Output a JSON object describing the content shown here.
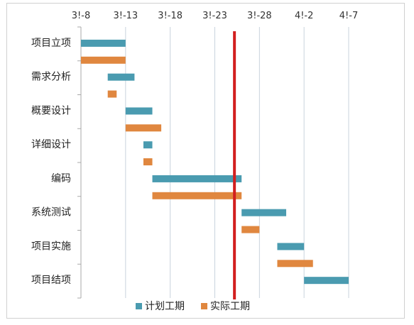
{
  "chart_data": {
    "type": "bar",
    "subtype": "gantt",
    "x_axis": {
      "position": "top",
      "tick_labels": [
        "3!-8",
        "3!-13",
        "3!-18",
        "3!-23",
        "3!-28",
        "4!-2",
        "4!-7"
      ],
      "tick_days": [
        0,
        5,
        10,
        15,
        20,
        25,
        30
      ],
      "range_days": [
        0,
        30
      ],
      "start_date": "3-8",
      "gridlines": true
    },
    "categories": [
      "项目立项",
      "需求分析",
      "概要设计",
      "详细设计",
      "编码",
      "系统测试",
      "项目实施",
      "项目结项"
    ],
    "series": [
      {
        "name": "计划工期",
        "color": "#4a9bb0",
        "bars": [
          {
            "start": 0,
            "end": 5
          },
          {
            "start": 3,
            "end": 6
          },
          {
            "start": 5,
            "end": 8
          },
          {
            "start": 7,
            "end": 8
          },
          {
            "start": 8,
            "end": 18
          },
          {
            "start": 18,
            "end": 23
          },
          {
            "start": 22,
            "end": 25
          },
          {
            "start": 25,
            "end": 30
          }
        ]
      },
      {
        "name": "实际工期",
        "color": "#e0873f",
        "bars": [
          {
            "start": 0,
            "end": 5
          },
          {
            "start": 3,
            "end": 4
          },
          {
            "start": 5,
            "end": 9
          },
          {
            "start": 7,
            "end": 8
          },
          {
            "start": 8,
            "end": 18
          },
          {
            "start": 18,
            "end": 20
          },
          {
            "start": 22,
            "end": 26
          },
          null
        ]
      }
    ],
    "today_marker": {
      "day": 17.2,
      "color": "#d21f1f"
    },
    "legend": {
      "position": "bottom"
    }
  }
}
